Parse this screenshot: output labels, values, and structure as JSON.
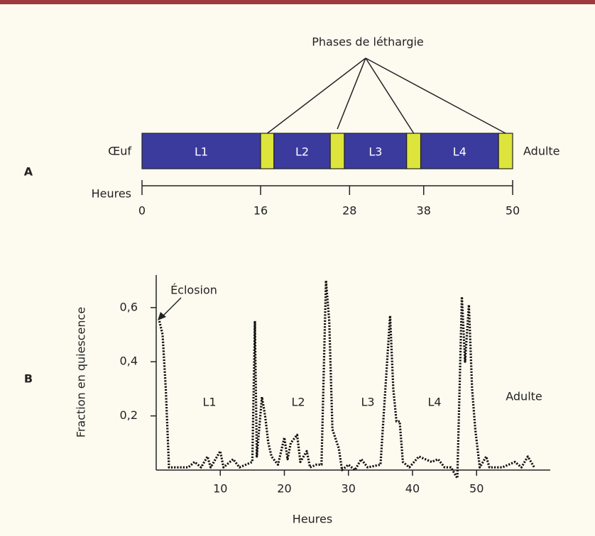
{
  "chart_data": [
    {
      "type": "timeline",
      "panel": "A",
      "left_label": "Œuf",
      "right_label": "Adulte",
      "annotation": "Phases de léthargie",
      "xlabel": "Heures",
      "xlim": [
        0,
        50
      ],
      "xticks": [
        0,
        16,
        28,
        38,
        50
      ],
      "segments": [
        {
          "label": "L1",
          "start": 0,
          "end": 16,
          "color": "#3b3b9e"
        },
        {
          "start": 16,
          "end": 17.8,
          "color": "#dde43c"
        },
        {
          "label": "L2",
          "start": 17.8,
          "end": 25.4,
          "color": "#3b3b9e"
        },
        {
          "start": 25.4,
          "end": 27.3,
          "color": "#dde43c"
        },
        {
          "label": "L3",
          "start": 27.3,
          "end": 35.7,
          "color": "#3b3b9e"
        },
        {
          "start": 35.7,
          "end": 37.6,
          "color": "#dde43c"
        },
        {
          "label": "L4",
          "start": 37.6,
          "end": 48.1,
          "color": "#3b3b9e"
        },
        {
          "start": 48.1,
          "end": 50,
          "color": "#dde43c"
        }
      ]
    },
    {
      "type": "line",
      "panel": "B",
      "xlabel": "Heures",
      "ylabel": "Fraction en quiescence",
      "annotations": [
        "Éclosion",
        "L1",
        "L2",
        "L3",
        "L4",
        "Adulte"
      ],
      "xlim": [
        0,
        61.5
      ],
      "ylim": [
        0,
        0.72
      ],
      "xticks": [
        10,
        20,
        30,
        40,
        50
      ],
      "yticks": [
        {
          "value": 0.2,
          "label": "0,2"
        },
        {
          "value": 0.4,
          "label": "0,4"
        },
        {
          "value": 0.6,
          "label": "0,6"
        }
      ],
      "color": "#111111",
      "x": [
        0.5,
        1,
        1.5,
        2,
        3,
        5,
        6,
        7,
        8,
        8.5,
        10,
        10.5,
        12,
        13,
        15,
        15.4,
        15.7,
        16.5,
        17,
        17.5,
        18,
        19,
        20,
        20.5,
        21,
        22,
        22.5,
        23.5,
        24,
        25,
        25.8,
        26.5,
        27,
        27.5,
        28.5,
        29,
        30,
        31,
        32,
        33,
        35,
        36.5,
        37,
        37.5,
        38,
        38.5,
        39.5,
        41,
        42,
        43,
        44,
        45,
        46,
        47,
        47.7,
        48.2,
        48.8,
        49.3,
        49.8,
        50.5,
        51.5,
        52,
        54,
        56,
        57,
        58,
        59
      ],
      "values": [
        0.55,
        0.5,
        0.3,
        0.01,
        0.01,
        0.01,
        0.03,
        0.01,
        0.05,
        0.01,
        0.07,
        0.01,
        0.04,
        0.01,
        0.03,
        0.55,
        0.05,
        0.27,
        0.2,
        0.1,
        0.05,
        0.02,
        0.12,
        0.04,
        0.1,
        0.13,
        0.03,
        0.07,
        0.01,
        0.02,
        0.02,
        0.7,
        0.55,
        0.15,
        0.08,
        0,
        0.02,
        0,
        0.04,
        0.01,
        0.02,
        0.57,
        0.3,
        0.18,
        0.18,
        0.03,
        0.01,
        0.05,
        0.04,
        0.03,
        0.04,
        0.01,
        0.01,
        -0.03,
        0.64,
        0.4,
        0.61,
        0.3,
        0.15,
        0.01,
        0.05,
        0.01,
        0.01,
        0.03,
        0.01,
        0.05,
        0.01
      ]
    }
  ]
}
